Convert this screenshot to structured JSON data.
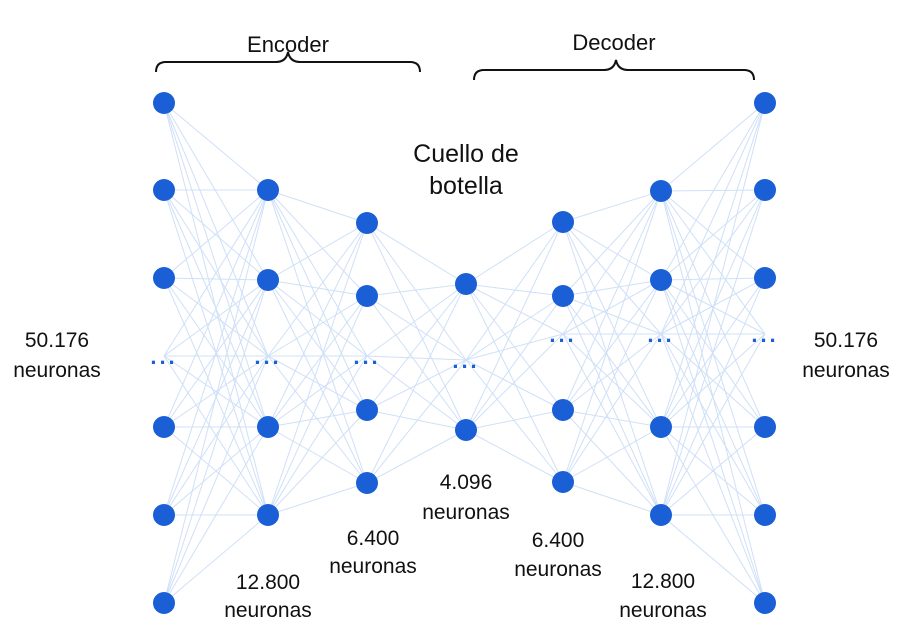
{
  "encoder_title": "Encoder",
  "decoder_title": "Decoder",
  "bottleneck_title_line1": "Cuello de",
  "bottleneck_title_line2": "botella",
  "ellipsis": "...",
  "layers": [
    {
      "name": "input",
      "count_line1": "50.176",
      "count_line2": "neuronas"
    },
    {
      "name": "enc-hidden-1",
      "count_line1": "12.800",
      "count_line2": "neuronas"
    },
    {
      "name": "enc-hidden-2",
      "count_line1": "6.400",
      "count_line2": "neuronas"
    },
    {
      "name": "bottleneck",
      "count_line1": "4.096",
      "count_line2": "neuronas"
    },
    {
      "name": "dec-hidden-1",
      "count_line1": "6.400",
      "count_line2": "neuronas"
    },
    {
      "name": "dec-hidden-2",
      "count_line1": "12.800",
      "count_line2": "neuronas"
    },
    {
      "name": "output",
      "count_line1": "50.176",
      "count_line2": "neuronas"
    }
  ],
  "colors": {
    "node": "#1a5fd6",
    "edge": "#cfe0f7",
    "text": "#111111"
  }
}
